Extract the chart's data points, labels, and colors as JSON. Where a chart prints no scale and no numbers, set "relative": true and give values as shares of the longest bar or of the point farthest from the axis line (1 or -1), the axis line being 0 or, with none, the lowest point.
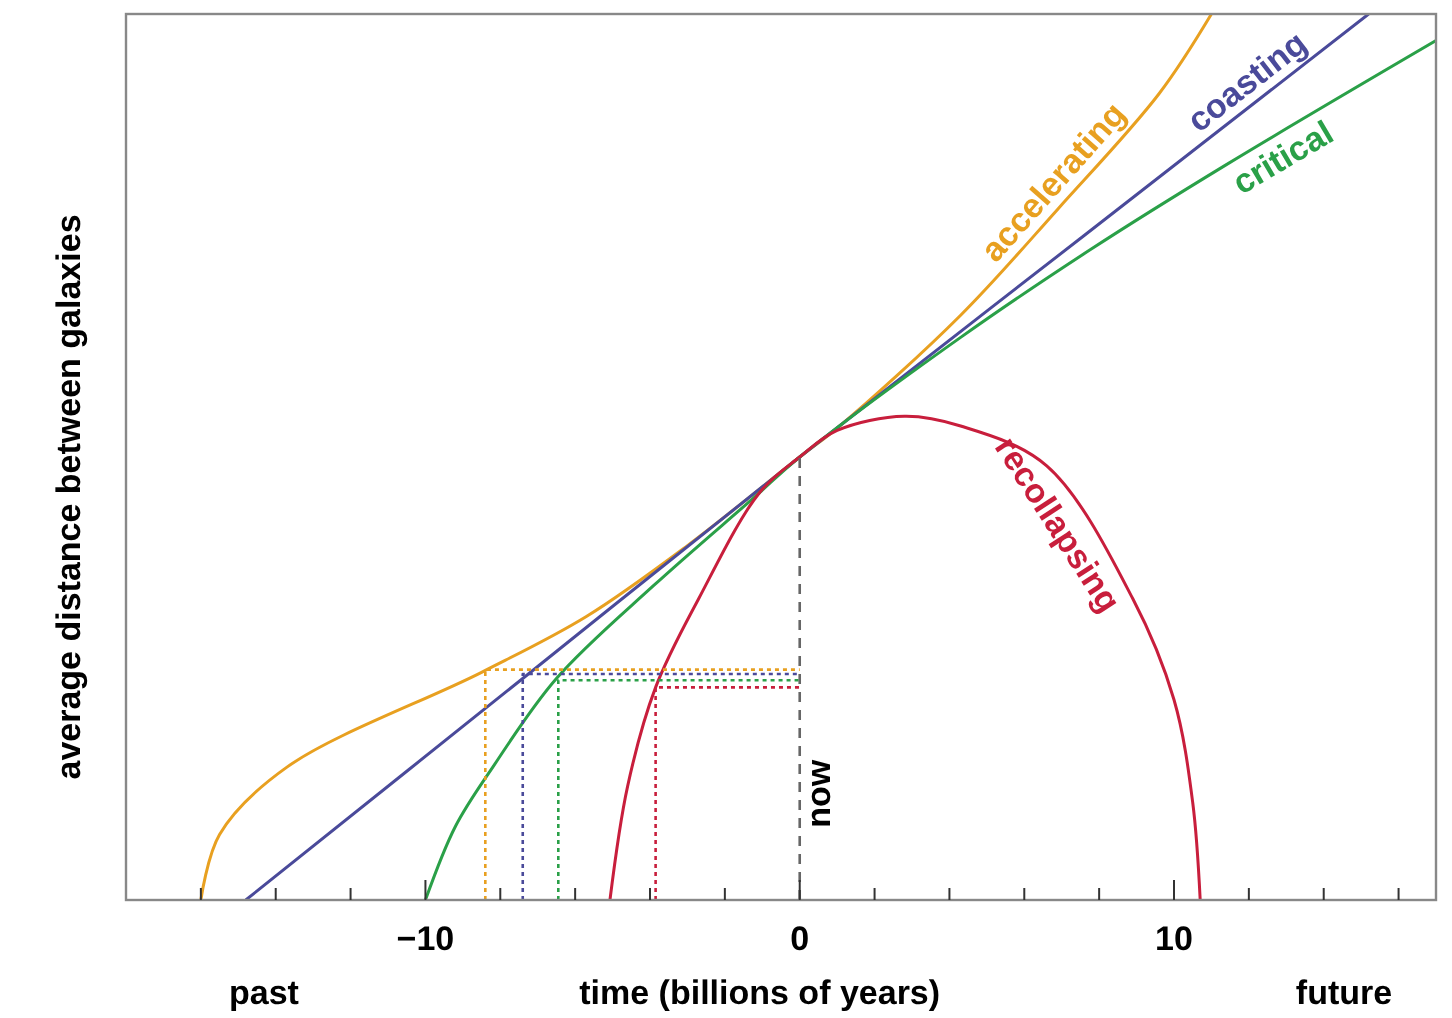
{
  "chart_data": {
    "type": "line",
    "relative": true,
    "xlabel": "time (billions of years)",
    "ylabel": "average distance between galaxies",
    "xlim": [
      -18,
      17
    ],
    "xticks": [
      {
        "value": -16,
        "label": null
      },
      {
        "value": -14,
        "label": null
      },
      {
        "value": -12,
        "label": null
      },
      {
        "value": -10,
        "label": "−10"
      },
      {
        "value": -8,
        "label": null
      },
      {
        "value": -6,
        "label": null
      },
      {
        "value": -4,
        "label": null
      },
      {
        "value": -2,
        "label": null
      },
      0,
      {
        "value": 2,
        "label": null
      },
      {
        "value": 4,
        "label": null
      },
      {
        "value": 6,
        "label": null
      },
      {
        "value": 8,
        "label": null
      },
      10,
      {
        "value": 12,
        "label": null
      },
      {
        "value": 14,
        "label": null
      },
      {
        "value": 16,
        "label": null
      }
    ],
    "tick_labels": "x",
    "annotations": [
      "past",
      "future",
      {
        "text": "now",
        "x": 0,
        "y": 0.12
      }
    ],
    "series": [
      {
        "name": "accelerating",
        "color": "#e8a020",
        "line_style": "solid",
        "x": [
          -16,
          -15.5,
          -13.7,
          -8.5,
          -5.7,
          -3,
          0,
          1.07,
          4.3,
          6.9,
          9.6,
          11
        ],
        "values": [
          0,
          0.074,
          0.15,
          0.257,
          0.32,
          0.4,
          0.5,
          0.535,
          0.66,
          0.78,
          0.91,
          1
        ]
      },
      {
        "name": "coasting",
        "color": "#4a4a9a",
        "line_style": "solid",
        "x": [
          -14.8,
          -7.4,
          0,
          7.6,
          15.2
        ],
        "values": [
          0,
          0.25,
          0.5,
          0.75,
          1
        ]
      },
      {
        "name": "critical",
        "color": "#2aa048",
        "line_style": "solid",
        "x": [
          -10,
          -9.2,
          -8.2,
          -6.5,
          -3.9,
          -1.2,
          0,
          4.3,
          7.8,
          11.4,
          17
        ],
        "values": [
          0,
          0.083,
          0.15,
          0.25,
          0.355,
          0.455,
          0.5,
          0.635,
          0.735,
          0.83,
          0.97
        ]
      },
      {
        "name": "recollapsing",
        "color": "#c81e3c",
        "line_style": "solid",
        "x": [
          -5.07,
          -4.6,
          -3.85,
          -2.7,
          -1.07,
          0,
          1,
          2.8,
          4.3,
          6.6,
          8.9,
          10,
          10.5,
          10.7
        ],
        "values": [
          0,
          0.128,
          0.24,
          0.34,
          0.46,
          0.5,
          0.53,
          0.546,
          0.535,
          0.49,
          0.34,
          0.226,
          0.11,
          0
        ]
      },
      {
        "color": "#e8a020",
        "line_style": "dotted",
        "x": [
          -8.4,
          -8.4,
          0
        ],
        "values": [
          0,
          0.26,
          0.26
        ]
      },
      {
        "color": "#4a4a9a",
        "line_style": "dotted",
        "x": [
          -7.4,
          -7.4,
          0
        ],
        "values": [
          0,
          0.255,
          0.255
        ]
      },
      {
        "color": "#2aa048",
        "line_style": "dotted",
        "x": [
          -6.45,
          -6.45,
          0
        ],
        "values": [
          0,
          0.248,
          0.248
        ]
      },
      {
        "color": "#c81e3c",
        "line_style": "dotted",
        "x": [
          -3.85,
          -3.85,
          0
        ],
        "values": [
          0,
          0.24,
          0.24
        ]
      },
      {
        "color": "#666666",
        "line_style": "dashed",
        "x": [
          0,
          0
        ],
        "values": [
          0,
          0.5
        ]
      }
    ]
  }
}
